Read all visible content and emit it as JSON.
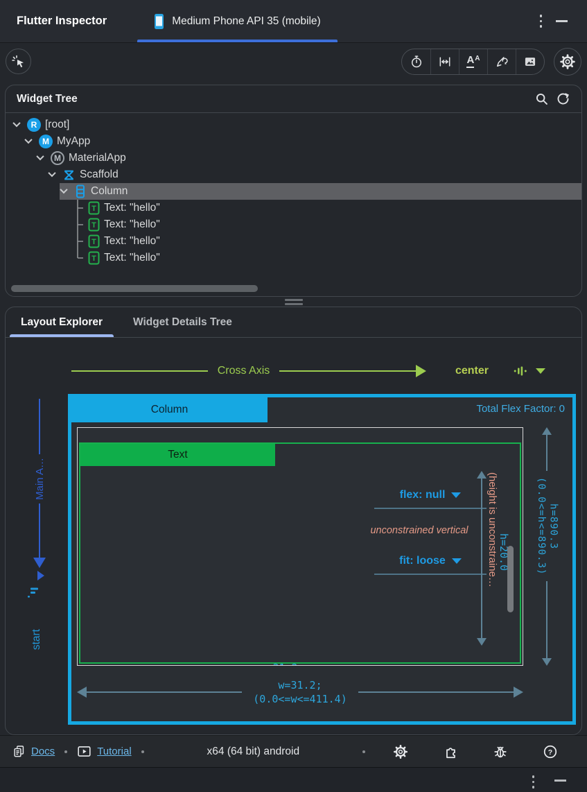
{
  "titlebar": {
    "app_title": "Flutter Inspector",
    "device_tab_label": "Medium Phone API 35 (mobile)"
  },
  "toolbar": {
    "left_icons": [
      "select-widget-mode-icon"
    ],
    "right_icons": [
      "slow-animations-icon",
      "show-guidelines-icon",
      "show-baselines-icon",
      "highlight-repaints-icon",
      "highlight-oversized-images-icon"
    ],
    "settings_icon": "settings-icon",
    "text_scale_letter": "A"
  },
  "widget_tree": {
    "title": "Widget Tree",
    "header_icons": [
      "search-icon",
      "refresh-icon"
    ],
    "nodes": [
      {
        "label": "[root]",
        "icon": "root-badge",
        "badge": "R",
        "level": 0,
        "expanded": true,
        "selected": false,
        "connector": null
      },
      {
        "label": "MyApp",
        "icon": "class-badge",
        "badge": "M",
        "level": 1,
        "expanded": true,
        "selected": false,
        "connector": null
      },
      {
        "label": "MaterialApp",
        "icon": "materialapp-badge",
        "badge": "M",
        "level": 2,
        "expanded": true,
        "selected": false,
        "connector": null
      },
      {
        "label": "Scaffold",
        "icon": "scaffold-icon",
        "badge": null,
        "level": 3,
        "expanded": true,
        "selected": false,
        "connector": null
      },
      {
        "label": "Column",
        "icon": "column-icon",
        "badge": null,
        "level": 4,
        "expanded": true,
        "selected": true,
        "connector": null
      },
      {
        "label": "Text: \"hello\"",
        "icon": "text-icon",
        "badge": "T",
        "level": 5,
        "expanded": false,
        "selected": false,
        "connector": "mid"
      },
      {
        "label": "Text: \"hello\"",
        "icon": "text-icon",
        "badge": "T",
        "level": 5,
        "expanded": false,
        "selected": false,
        "connector": "mid"
      },
      {
        "label": "Text: \"hello\"",
        "icon": "text-icon",
        "badge": "T",
        "level": 5,
        "expanded": false,
        "selected": false,
        "connector": "mid"
      },
      {
        "label": "Text: \"hello\"",
        "icon": "text-icon",
        "badge": "T",
        "level": 5,
        "expanded": false,
        "selected": false,
        "connector": "end"
      }
    ]
  },
  "tabs": {
    "layout_explorer": "Layout Explorer",
    "widget_details_tree": "Widget Details Tree"
  },
  "layout_explorer": {
    "cross_axis_label": "Cross Axis",
    "cross_axis_alignment": "center",
    "main_axis_label": "Main A…",
    "main_axis_alignment": "start",
    "widget_name": "Column",
    "total_flex": "Total Flex Factor: 0",
    "child_name": "Text",
    "flex_label": "flex: null",
    "fit_label": "fit: loose",
    "unconstrained_note": "unconstrained vertical",
    "height_unconstrained_note": "(height is unconstraine…",
    "child_height": "h=20.0",
    "height_value": "h=890.3",
    "height_constraint": "(0.0<=h<=890.3)",
    "width_value": "w=31.2;",
    "width_constraint": "(0.0<=w<=411.4)",
    "clipped_width_label": "w=31.2;"
  },
  "statusbar": {
    "docs_label": "Docs",
    "tutorial_label": "Tutorial",
    "platform": "x64 (64 bit) android",
    "icons": [
      "settings-icon",
      "extensions-icon",
      "report-bug-icon",
      "help-icon"
    ],
    "help_glyph": "?"
  },
  "colors": {
    "accent_blue": "#16a8e2",
    "green": "#0fae4a",
    "green_border": "#17b14e",
    "tree_icon_blue": "#1a9fe8",
    "tree_icon_green": "#23b14d",
    "device_tab_underline": "#3d6fd9",
    "active_tab_underline": "#9db7f0",
    "cross_axis_green": "#9ccc4f",
    "center_label_green": "#b5ce52",
    "main_axis_blue": "#2f5ecf",
    "start_label_blue": "#2196d8",
    "steel_arrow": "#5d8296",
    "annotation_blue": "#2da7dd",
    "salmon": "#e59a87",
    "flex_link_blue": "#1e9be4",
    "selected_row_bg": "#5e5f63",
    "link_blue": "#6cb8ea"
  }
}
